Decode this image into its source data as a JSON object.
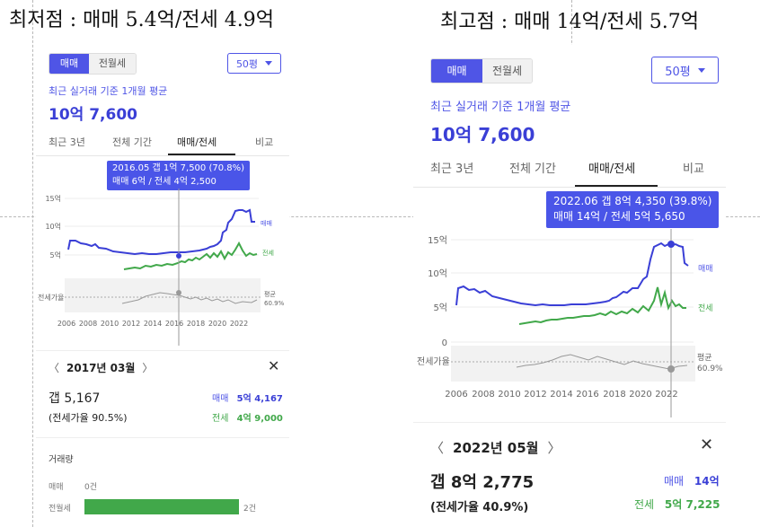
{
  "headlines": {
    "left": "최저점 : 매매 5.4억/전세 4.9억",
    "right": "최고점 : 매매 14억/전세 5.7억"
  },
  "colors": {
    "accent": "#4f55e6",
    "sale": "#3a3fd6",
    "jeonse": "#41a84a",
    "ratio": "#999999"
  },
  "left": {
    "toggle": {
      "sale": "매매",
      "rent": "전월세"
    },
    "size_select": "50평",
    "subtitle": "최근 실거래 기준 1개월 평균",
    "price": "10억 7,600",
    "tabs": [
      "최근 3년",
      "전체 기간",
      "매매/전세",
      "비교"
    ],
    "active_tab": 2,
    "tooltip": {
      "line1": "2016.05  갭 1억 7,500 (70.8%)",
      "line2": "매매 6억 / 전세 4억 2,500"
    },
    "axis": {
      "y": [
        "15억",
        "10억",
        "5억"
      ],
      "ratio_label": "전세가율",
      "avg_label": "평균",
      "avg_value": "60.9%",
      "series_sale": "매매",
      "series_jeonse": "전세",
      "x": [
        "2006",
        "2008",
        "2010",
        "2012",
        "2014",
        "2016",
        "2018",
        "2020",
        "2022"
      ]
    },
    "detail": {
      "month": "2017년 03월",
      "gap_label": "갭",
      "gap_value": "5,167",
      "ratio": "(전세가율 90.5%)",
      "sale_label": "매매",
      "sale_value": "5억 4,167",
      "jeonse_label": "전세",
      "jeonse_value": "4억 9,000"
    },
    "volume": {
      "title": "거래량",
      "rows": [
        {
          "label": "매매",
          "value": "0건",
          "fraction": 0
        },
        {
          "label": "전월세",
          "value": "2건",
          "fraction": 1
        }
      ]
    }
  },
  "right": {
    "toggle": {
      "sale": "매매",
      "rent": "전월세"
    },
    "size_select": "50평",
    "subtitle": "최근 실거래 기준 1개월 평균",
    "price": "10억 7,600",
    "tabs": [
      "최근 3년",
      "전체 기간",
      "매매/전세",
      "비교"
    ],
    "active_tab": 2,
    "tooltip": {
      "line1": "2022.06  갭 8억 4,350 (39.8%)",
      "line2": "매매 14억 / 전세 5억 5,650"
    },
    "axis": {
      "y": [
        "15억",
        "10억",
        "5억",
        "0"
      ],
      "ratio_label": "전세가율",
      "avg_label": "평균",
      "avg_value": "60.9%",
      "series_sale": "매매",
      "series_jeonse": "전세",
      "x": [
        "2006",
        "2008",
        "2010",
        "2012",
        "2014",
        "2016",
        "2018",
        "2020",
        "2022"
      ]
    },
    "detail": {
      "month": "2022년 05월",
      "gap_label": "갭",
      "gap_value": "8억 2,775",
      "ratio": "(전세가율 40.9%)",
      "sale_label": "매매",
      "sale_value": "14억",
      "jeonse_label": "전세",
      "jeonse_value": "5억 7,225"
    }
  }
}
